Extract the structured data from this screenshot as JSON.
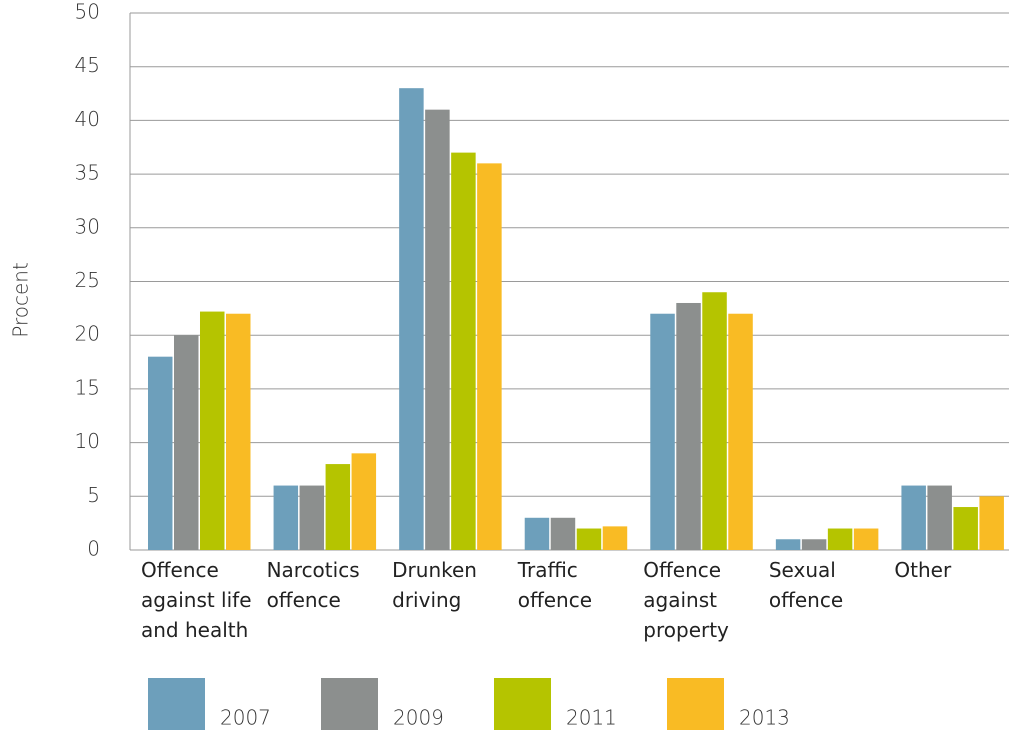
{
  "chart_data": {
    "type": "bar",
    "y_label": "Procent",
    "categories": [
      "Offence against life and health",
      "Narcotics offence",
      "Drunken driving",
      "Traffic offence",
      "Offence against property",
      "Sexual offence",
      "Other"
    ],
    "series": [
      {
        "name": "2007",
        "color": "#6d9fbb",
        "values": [
          18,
          6,
          43,
          3,
          22,
          1,
          6
        ]
      },
      {
        "name": "2009",
        "color": "#8c8f8e",
        "values": [
          20,
          6,
          41,
          3,
          23,
          1,
          6
        ]
      },
      {
        "name": "2011",
        "color": "#b5c400",
        "values": [
          22.2,
          8,
          37,
          2,
          24,
          2,
          4
        ]
      },
      {
        "name": "2013",
        "color": "#f9bb24",
        "values": [
          22,
          9,
          36,
          2.2,
          22,
          2,
          5
        ]
      }
    ],
    "ylim": [
      0,
      50
    ],
    "yticks": [
      0,
      5,
      10,
      15,
      20,
      25,
      30,
      35,
      40,
      45,
      50
    ],
    "grid": true
  }
}
